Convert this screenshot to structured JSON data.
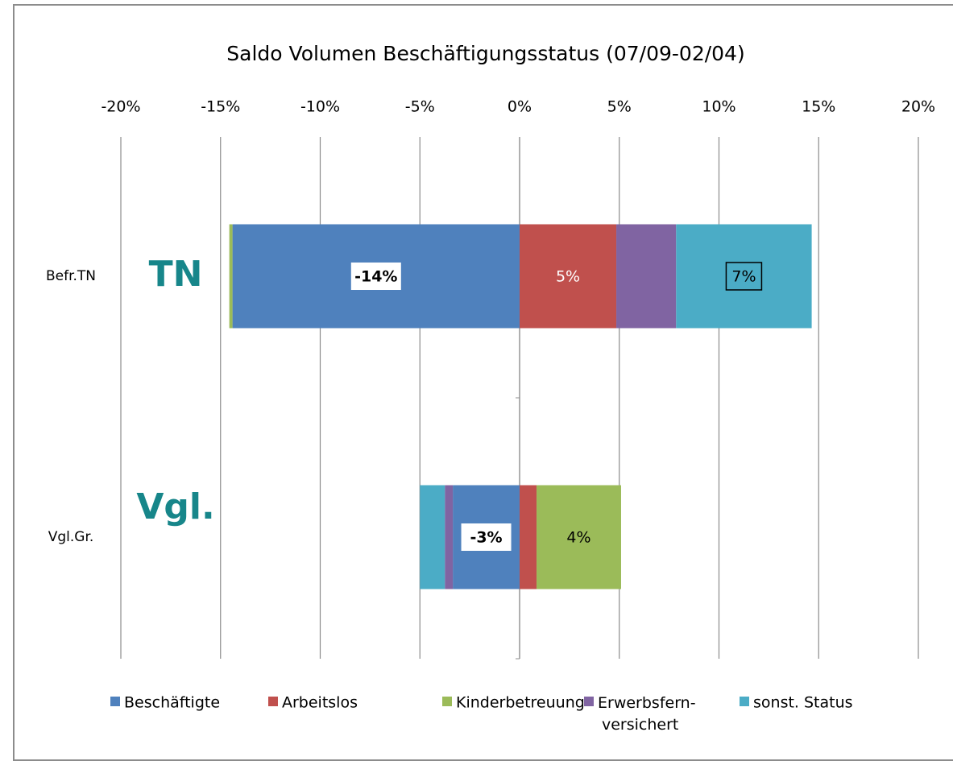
{
  "chart_data": {
    "type": "bar",
    "orientation": "horizontal",
    "stacked": true,
    "title": "Saldo Volumen Beschäftigungsstatus (07/09-02/04)",
    "categories": [
      "Befr.TN",
      "Vgl.Gr."
    ],
    "annotations": [
      "TN",
      "Vgl."
    ],
    "annotation_color": "#17868a",
    "series": [
      {
        "name": "Beschäftigte",
        "color": "#4f81bd",
        "values": [
          -14.4,
          -3.35
        ],
        "value_labels": [
          "-14%",
          "-3%"
        ]
      },
      {
        "name": "Arbeitslos",
        "color": "#c0504d",
        "values": [
          4.85,
          0.85
        ],
        "value_labels": [
          "5%",
          null
        ]
      },
      {
        "name": "Kinderbetreuung",
        "color": "#9bbb59",
        "values": [
          -0.16,
          4.24
        ],
        "value_labels": [
          null,
          "4%"
        ]
      },
      {
        "name": "Erwerbsfern- versichert",
        "color": "#8064a2",
        "values": [
          3.0,
          -0.4
        ]
      },
      {
        "name": "sonst. Status",
        "color": "#4bacc6",
        "values": [
          6.8,
          -1.25
        ],
        "value_labels": [
          "7%",
          null
        ]
      }
    ],
    "xlim": [
      -20,
      20
    ],
    "xticks": [
      {
        "value": -20,
        "label": "-20%"
      },
      {
        "value": -15,
        "label": "-15%"
      },
      {
        "value": -10,
        "label": "-10%"
      },
      {
        "value": -5,
        "label": "-5%"
      },
      {
        "value": 0,
        "label": "0%"
      },
      {
        "value": 5,
        "label": "5%"
      },
      {
        "value": 10,
        "label": "10%"
      },
      {
        "value": 15,
        "label": "15%"
      },
      {
        "value": 20,
        "label": "20%"
      }
    ],
    "grid": true,
    "legend": "bottom"
  }
}
